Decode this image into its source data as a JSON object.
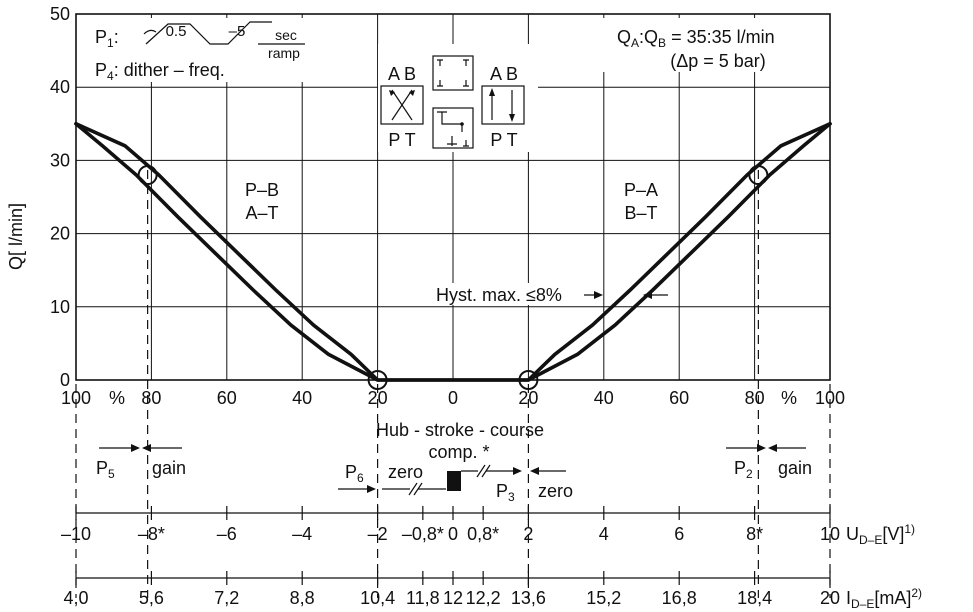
{
  "chart_data": {
    "type": "line",
    "title": "",
    "ylabel_main": "Q",
    "ylabel_unit": "[ l/min]",
    "ylim": [
      0,
      50
    ],
    "yticks": [
      "0",
      "10",
      "20",
      "30",
      "40",
      "50"
    ],
    "xlim": [
      -100,
      100
    ],
    "xticks_percent": [
      "100",
      "80",
      "60",
      "40",
      "20",
      "0",
      "20",
      "40",
      "60",
      "80",
      "100"
    ],
    "percent_symbol": "%",
    "series": [
      {
        "x": [
          -100,
          -90,
          -81,
          -70,
          -60,
          -50,
          -40,
          -30,
          -20,
          20,
          30,
          40,
          50,
          60,
          70,
          81,
          90,
          100
        ],
        "y": [
          35,
          32,
          28,
          22.3,
          17.3,
          12.3,
          7.5,
          3.5,
          0,
          0,
          3.5,
          7.5,
          12.3,
          17.3,
          22.3,
          28,
          32,
          35
        ]
      }
    ],
    "circle_markers": [
      {
        "x": -81,
        "y": 28
      },
      {
        "x": -20,
        "y": 0
      },
      {
        "x": 20,
        "y": 0
      },
      {
        "x": 81,
        "y": 28
      }
    ],
    "hysteresis_label": "Hyst. max. ≤8%",
    "region_left": [
      "P–B",
      "A–T"
    ],
    "region_right": [
      "P–A",
      "B–T"
    ],
    "flow_note": {
      "qa": "Q",
      "qa_sub": "A",
      "qb": ":Q",
      "qb_sub": "B",
      "value": " = 35:35 l/min",
      "dp": "(Δp = 5 bar)"
    },
    "params": {
      "p1": "P",
      "p1_sub": "1",
      "p1_suffix": ":",
      "p1_v1": "0.5",
      "p1_v2": "–5",
      "sec": "sec",
      "ramp": "ramp",
      "p4": "P",
      "p4_sub": "4",
      "p4_text": ":  dither – freq."
    },
    "valve_left": {
      "top": "A B",
      "bottom": "P T"
    },
    "valve_right": {
      "top": "A B",
      "bottom": "P T"
    },
    "hub_label": "Hub - stroke - course",
    "comp_label": "comp. *",
    "p5": {
      "main": "P",
      "sub": "5"
    },
    "p2": {
      "main": "P",
      "sub": "2"
    },
    "p6": {
      "main": "P",
      "sub": "6"
    },
    "p3": {
      "main": "P",
      "sub": "3"
    },
    "gain_label": "gain",
    "zero_label": "zero",
    "voltage_ticks": [
      "–10",
      "–8*",
      "–6",
      "–4",
      "–2",
      "–0,8*",
      "0",
      "0,8*",
      "2",
      "4",
      "6",
      "8*",
      "10"
    ],
    "voltage_axis_label": {
      "main": "U",
      "sub": "D–E",
      "unit": "[V]",
      "sup": "1)"
    },
    "current_ticks": [
      "4,0",
      "5,6",
      "7,2",
      "8,8",
      "10,4",
      "11,8",
      "12",
      "12,2",
      "13,6",
      "15,2",
      "16,8",
      "18,4",
      "20"
    ],
    "current_axis_label": {
      "main": "I",
      "sub": "D–E",
      "unit": "[mA]",
      "sup": "2)"
    }
  }
}
